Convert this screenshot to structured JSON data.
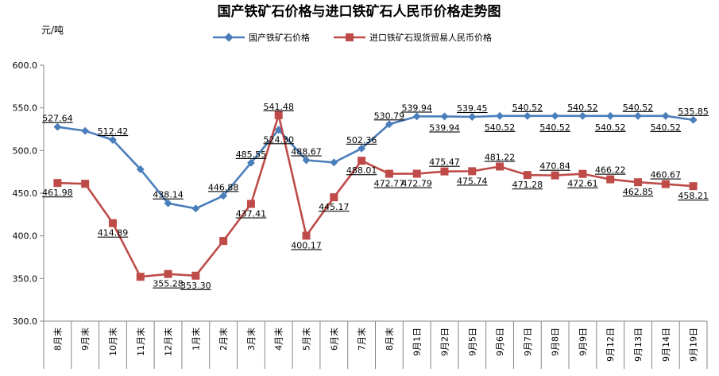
{
  "chart_data": {
    "type": "line",
    "title": "国产铁矿石价格与进口铁矿石人民币价格走势图",
    "ylabel": "元/吨",
    "ylim": [
      300,
      600
    ],
    "yticks": [
      "300.0",
      "350.0",
      "400.0",
      "450.0",
      "500.0",
      "550.0",
      "600.0"
    ],
    "grid": false,
    "legend_position": "top",
    "categories": [
      "8月末",
      "9月末",
      "10月末",
      "11月末",
      "12月末",
      "1月末",
      "2月末",
      "3月末",
      "4月末",
      "5月末",
      "6月末",
      "7月末",
      "8月末",
      "9月1日",
      "9月2日",
      "9月5日",
      "9月6日",
      "9月7日",
      "9月8日",
      "9月9日",
      "9月12日",
      "9月13日",
      "9月14日",
      "9月19日"
    ],
    "series": [
      {
        "name": "国产铁矿石价格",
        "color": "#4a7ebb",
        "marker": "diamond",
        "values": [
          527.64,
          523,
          512.42,
          478,
          438.14,
          432,
          446.88,
          485.55,
          524.3,
          488.67,
          486,
          502.36,
          530.79,
          539.94,
          539.94,
          539.45,
          540.52,
          540.52,
          540.52,
          540.52,
          540.52,
          540.52,
          540.52,
          535.85
        ],
        "labels": [
          "527.64",
          "",
          "512.42",
          "",
          "438.14",
          "",
          "446.88",
          "485.55",
          "524.30",
          "488.67",
          "",
          "502.36",
          "530.79",
          "539.94",
          "539.94",
          "539.45",
          "540.52",
          "540.52",
          "540.52",
          "540.52",
          "540.52",
          "540.52",
          "540.52",
          "535.85"
        ]
      },
      {
        "name": "进口铁矿石现货贸易人民币价格",
        "color": "#be4b48",
        "marker": "square",
        "values": [
          461.98,
          461,
          414.89,
          352,
          355.28,
          353.3,
          394,
          437.41,
          541.48,
          400.17,
          445.17,
          488.01,
          472.77,
          472.79,
          475.47,
          475.74,
          481.22,
          471.28,
          470.84,
          472.61,
          466.22,
          462.85,
          460.67,
          458.21
        ],
        "labels": [
          "461.98",
          "",
          "414.89",
          "",
          "355.28",
          "353.30",
          "",
          "437.41",
          "541.48",
          "400.17",
          "445.17",
          "488.01",
          "472.77",
          "472.79",
          "475.47",
          "475.74",
          "481.22",
          "471.28",
          "470.84",
          "472.61",
          "466.22",
          "462.85",
          "460.67",
          "458.21"
        ]
      }
    ]
  }
}
